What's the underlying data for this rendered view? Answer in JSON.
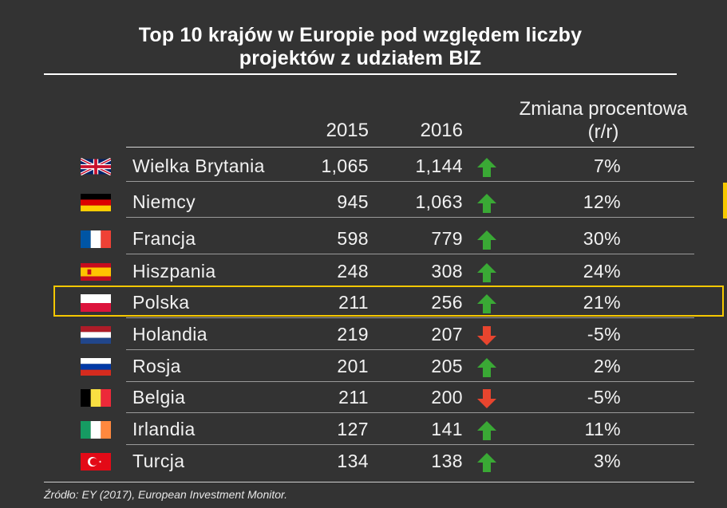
{
  "title_line1": "Top 10 krajów w Europie pod względem liczby",
  "title_line2": "projektów z udziałem BIZ",
  "columns": {
    "y2015": "2015",
    "y2016": "2016",
    "change_line1": "Zmiana procentowa",
    "change_line2": "(r/r)"
  },
  "highlight_color": "#f6c800",
  "arrow_colors": {
    "up": "#3aa935",
    "down": "#e8452e"
  },
  "rows": [
    {
      "country": "Wielka Brytania",
      "flag": "uk-flag-icon",
      "v2015": "1,065",
      "v2016": "1,144",
      "trend": "up",
      "change": "7%"
    },
    {
      "country": "Niemcy",
      "flag": "germany-flag-icon",
      "v2015": "945",
      "v2016": "1,063",
      "trend": "up",
      "change": "12%"
    },
    {
      "country": "Francja",
      "flag": "france-flag-icon",
      "v2015": "598",
      "v2016": "779",
      "trend": "up",
      "change": "30%"
    },
    {
      "country": "Hiszpania",
      "flag": "spain-flag-icon",
      "v2015": "248",
      "v2016": "308",
      "trend": "up",
      "change": "24%"
    },
    {
      "country": "Polska",
      "flag": "poland-flag-icon",
      "v2015": "211",
      "v2016": "256",
      "trend": "up",
      "change": "21%"
    },
    {
      "country": "Holandia",
      "flag": "netherlands-flag-icon",
      "v2015": "219",
      "v2016": "207",
      "trend": "down",
      "change": "-5%"
    },
    {
      "country": "Rosja",
      "flag": "russia-flag-icon",
      "v2015": "201",
      "v2016": "205",
      "trend": "up",
      "change": "2%"
    },
    {
      "country": "Belgia",
      "flag": "belgium-flag-icon",
      "v2015": "211",
      "v2016": "200",
      "trend": "down",
      "change": "-5%"
    },
    {
      "country": "Irlandia",
      "flag": "ireland-flag-icon",
      "v2015": "127",
      "v2016": "141",
      "trend": "up",
      "change": "11%"
    },
    {
      "country": "Turcja",
      "flag": "turkey-flag-icon",
      "v2015": "134",
      "v2016": "138",
      "trend": "up",
      "change": "3%"
    }
  ],
  "source": "Źródło: EY (2017), European Investment Monitor."
}
